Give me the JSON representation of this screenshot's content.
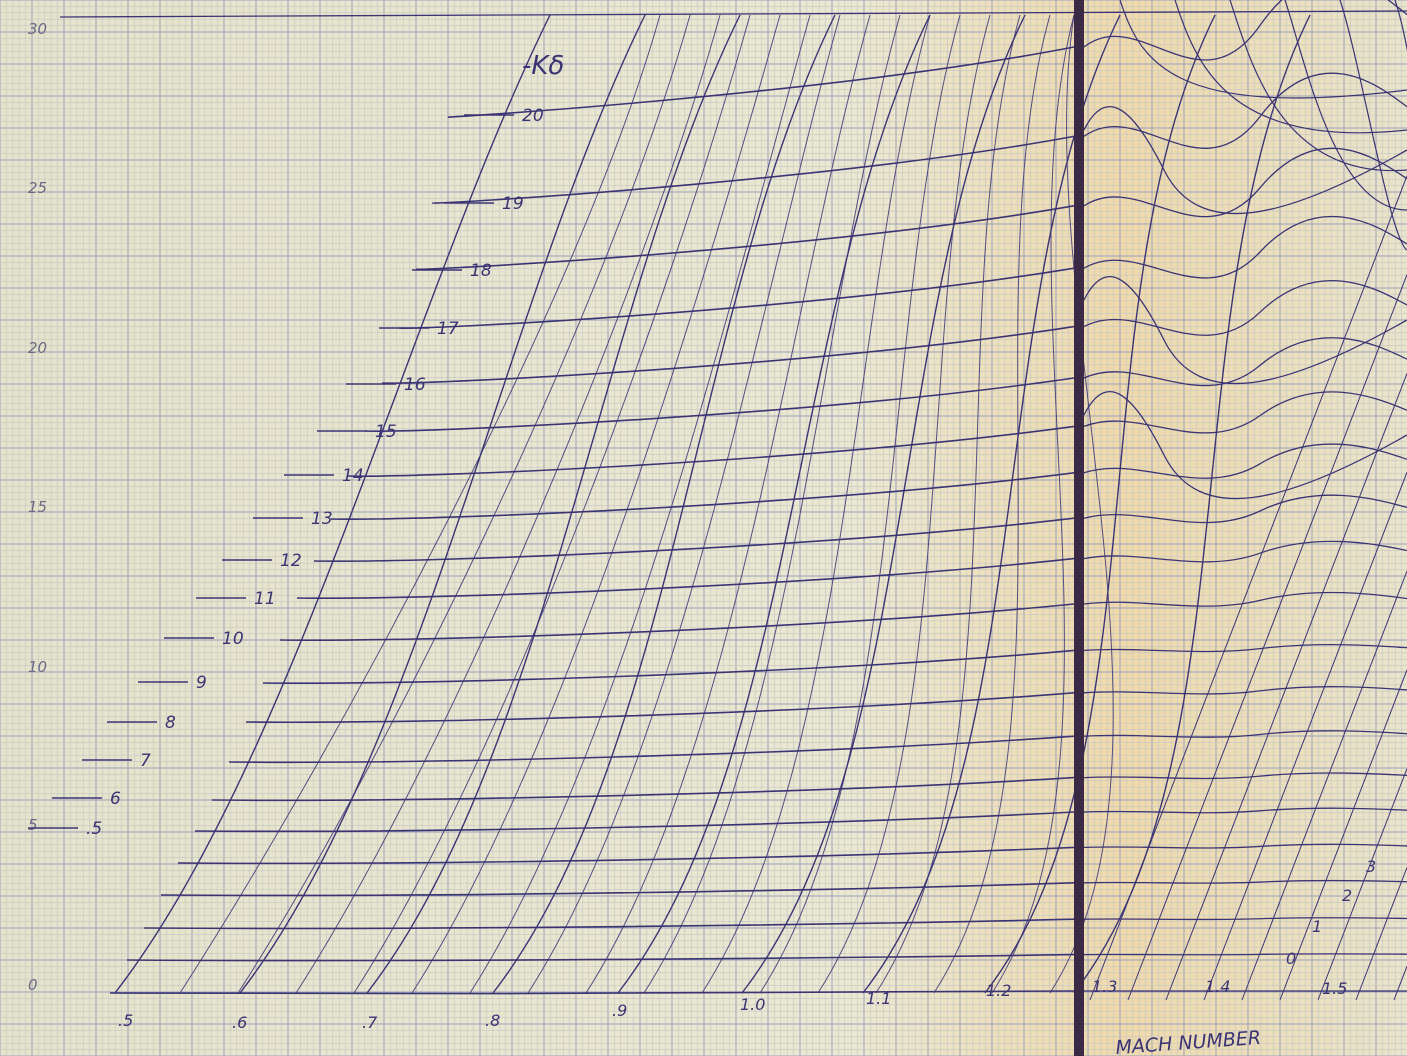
{
  "title": "-Kδ",
  "mach_axis": {
    "ticks": [
      ".5",
      ".6",
      ".7",
      ".8",
      ".9",
      "1.0",
      "1.1",
      "1.2",
      "1.3",
      "1.4",
      "1.5"
    ],
    "label": "MACH NUMBER"
  },
  "left_axis": {
    "ticks": [
      "0",
      "5",
      "10",
      "15",
      "20",
      "25",
      "30"
    ]
  },
  "k_labels": [
    "20",
    "19",
    "18",
    "17",
    "16",
    "15",
    "14",
    "13",
    "12",
    "11",
    "10",
    "9",
    "8",
    "7",
    "6",
    ".5"
  ],
  "k_labels_right": [
    "3",
    "2",
    "1",
    "0"
  ],
  "colors": {
    "ink": "#3b3474",
    "grid_major": "#9aa1b8",
    "grid_minor": "#c3c6c4",
    "bar": "#3a2a45"
  }
}
